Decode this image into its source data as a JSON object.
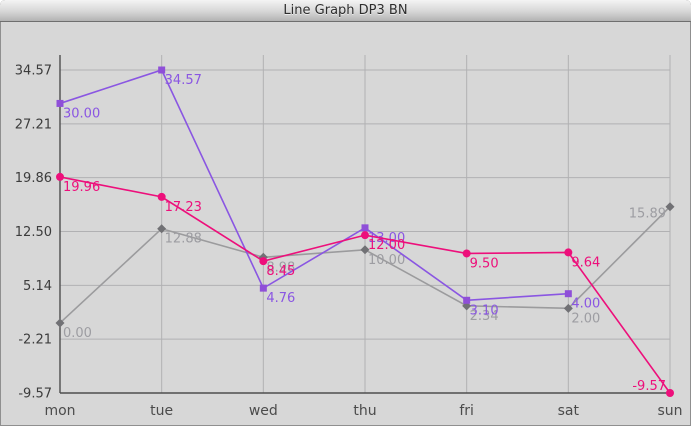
{
  "window": {
    "title": "Line Graph DP3 BN"
  },
  "chart_data": {
    "type": "line",
    "title": "Line Graph DP3 BN",
    "categories": [
      "mon",
      "tue",
      "wed",
      "thu",
      "fri",
      "sat",
      "sun"
    ],
    "yticks": [
      34.57,
      27.21,
      19.86,
      12.5,
      5.14,
      -2.21,
      -9.57
    ],
    "ylim": [
      -9.57,
      34.57
    ],
    "grid": true,
    "legend": "none",
    "value_labels": true,
    "series": [
      {
        "name": "gray-series",
        "marker": "diamond",
        "line_color": "#9b9b9d",
        "marker_color": "#717175",
        "label_color": "#9d9da2",
        "values": [
          0.0,
          12.88,
          8.98,
          10.0,
          2.34,
          2.0,
          15.89
        ]
      },
      {
        "name": "purple-series",
        "marker": "square",
        "line_color": "#8a56e2",
        "marker_color": "#8f4fd8",
        "label_color": "#8a56e2",
        "values": [
          30.0,
          34.57,
          4.76,
          13.0,
          3.1,
          4.0,
          null
        ]
      },
      {
        "name": "pink-series",
        "marker": "circle",
        "line_color": "#ed0f7b",
        "marker_color": "#ed0f7b",
        "label_color": "#ed0f7b",
        "values": [
          19.96,
          17.23,
          8.45,
          12.0,
          9.5,
          9.64,
          -9.57
        ]
      }
    ],
    "label_overrides": [
      {
        "series": 0,
        "index": 6,
        "side": "left-below"
      },
      {
        "series": 2,
        "index": 6,
        "side": "left-above"
      }
    ],
    "colors": {
      "background": "#d7d7d7",
      "gridline": "#b1b1b3",
      "axis": "#4e4e4e",
      "ytick_text": "#3c3c3c",
      "xtick_text": "#4b4b4b"
    }
  }
}
